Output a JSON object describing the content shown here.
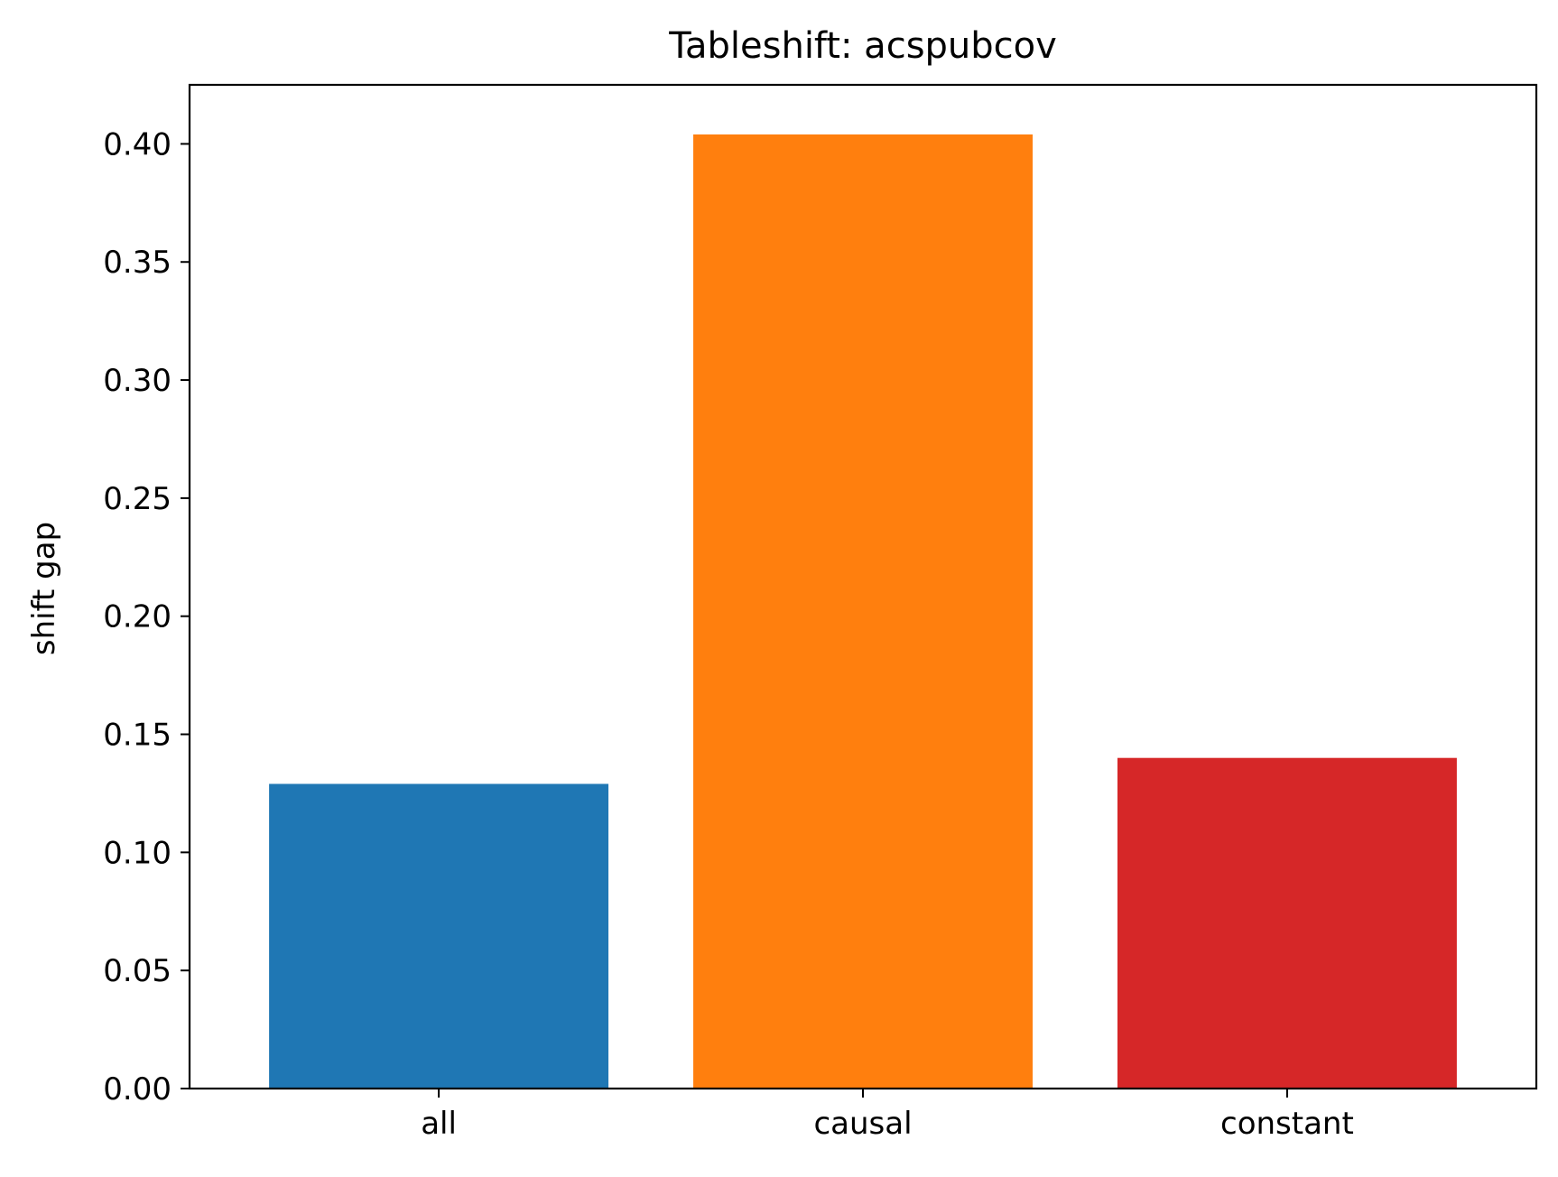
{
  "chart_data": {
    "type": "bar",
    "title": "Tableshift: acspubcov",
    "xlabel": "",
    "ylabel": "shift gap",
    "categories": [
      "all",
      "causal",
      "constant"
    ],
    "values": [
      0.129,
      0.404,
      0.14
    ],
    "colors": [
      "#1f77b4",
      "#ff7f0e",
      "#d62728"
    ],
    "ylim": [
      0,
      0.425
    ],
    "yticks": [
      0.0,
      0.05,
      0.1,
      0.15,
      0.2,
      0.25,
      0.3,
      0.35,
      0.4
    ],
    "ytick_labels": [
      "0.00",
      "0.05",
      "0.10",
      "0.15",
      "0.20",
      "0.25",
      "0.30",
      "0.35",
      "0.40"
    ],
    "grid": false,
    "legend": "none"
  }
}
